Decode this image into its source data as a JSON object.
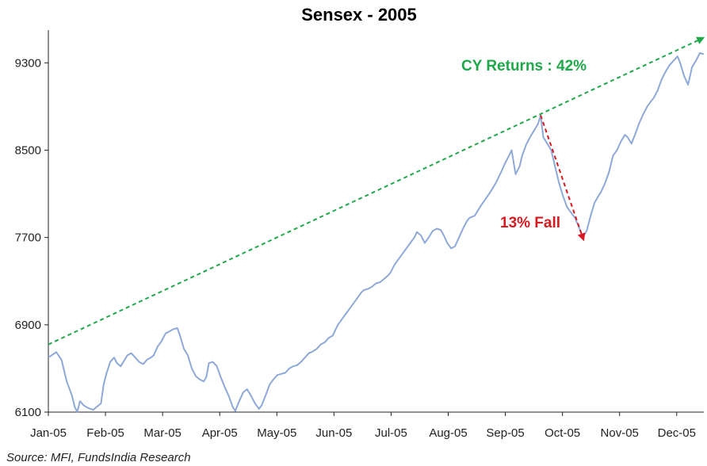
{
  "chart_data": {
    "type": "line",
    "title": "Sensex - 2005",
    "xlabel": "",
    "ylabel": "",
    "ylim": [
      6100,
      9600
    ],
    "y_ticks": [
      6100,
      6900,
      7700,
      8500,
      9300
    ],
    "x_tick_labels": [
      "Jan-05",
      "Feb-05",
      "Mar-05",
      "Apr-05",
      "May-05",
      "Jun-05",
      "Jul-05",
      "Aug-05",
      "Sep-05",
      "Oct-05",
      "Nov-05",
      "Dec-05"
    ],
    "grid": false,
    "series": [
      {
        "color": "#8ea9d8",
        "points": [
          [
            0.0,
            6600
          ],
          [
            0.3,
            6650
          ],
          [
            0.5,
            6580
          ],
          [
            0.7,
            6380
          ],
          [
            0.9,
            6250
          ],
          [
            1.0,
            6150
          ],
          [
            1.1,
            6100
          ],
          [
            1.2,
            6200
          ],
          [
            1.35,
            6160
          ],
          [
            1.5,
            6140
          ],
          [
            1.7,
            6120
          ],
          [
            1.85,
            6150
          ],
          [
            2.0,
            6180
          ],
          [
            2.1,
            6350
          ],
          [
            2.2,
            6450
          ],
          [
            2.35,
            6560
          ],
          [
            2.5,
            6600
          ],
          [
            2.6,
            6550
          ],
          [
            2.75,
            6520
          ],
          [
            2.9,
            6580
          ],
          [
            3.0,
            6620
          ],
          [
            3.15,
            6640
          ],
          [
            3.3,
            6600
          ],
          [
            3.45,
            6560
          ],
          [
            3.6,
            6540
          ],
          [
            3.75,
            6580
          ],
          [
            3.9,
            6600
          ],
          [
            4.0,
            6620
          ],
          [
            4.15,
            6700
          ],
          [
            4.3,
            6750
          ],
          [
            4.45,
            6820
          ],
          [
            4.6,
            6840
          ],
          [
            4.75,
            6860
          ],
          [
            4.9,
            6870
          ],
          [
            5.0,
            6800
          ],
          [
            5.15,
            6680
          ],
          [
            5.3,
            6620
          ],
          [
            5.45,
            6500
          ],
          [
            5.6,
            6430
          ],
          [
            5.75,
            6400
          ],
          [
            5.9,
            6380
          ],
          [
            6.0,
            6420
          ],
          [
            6.1,
            6550
          ],
          [
            6.25,
            6560
          ],
          [
            6.4,
            6520
          ],
          [
            6.55,
            6420
          ],
          [
            6.7,
            6330
          ],
          [
            6.85,
            6250
          ],
          [
            7.0,
            6150
          ],
          [
            7.1,
            6110
          ],
          [
            7.25,
            6200
          ],
          [
            7.4,
            6280
          ],
          [
            7.55,
            6310
          ],
          [
            7.7,
            6250
          ],
          [
            7.85,
            6180
          ],
          [
            8.0,
            6130
          ],
          [
            8.1,
            6160
          ],
          [
            8.25,
            6250
          ],
          [
            8.4,
            6350
          ],
          [
            8.55,
            6400
          ],
          [
            8.7,
            6440
          ],
          [
            8.85,
            6450
          ],
          [
            9.0,
            6460
          ],
          [
            9.15,
            6500
          ],
          [
            9.3,
            6520
          ],
          [
            9.45,
            6530
          ],
          [
            9.6,
            6560
          ],
          [
            9.75,
            6600
          ],
          [
            9.9,
            6640
          ],
          [
            10.0,
            6650
          ],
          [
            10.2,
            6680
          ],
          [
            10.35,
            6720
          ],
          [
            10.5,
            6740
          ],
          [
            10.65,
            6780
          ],
          [
            10.8,
            6800
          ],
          [
            10.9,
            6850
          ],
          [
            11.0,
            6900
          ],
          [
            11.15,
            6950
          ],
          [
            11.3,
            7000
          ],
          [
            11.45,
            7050
          ],
          [
            11.6,
            7100
          ],
          [
            11.75,
            7150
          ],
          [
            11.9,
            7200
          ],
          [
            12.0,
            7220
          ],
          [
            12.15,
            7230
          ],
          [
            12.3,
            7250
          ],
          [
            12.45,
            7280
          ],
          [
            12.6,
            7290
          ],
          [
            12.75,
            7320
          ],
          [
            12.9,
            7350
          ],
          [
            13.0,
            7380
          ],
          [
            13.15,
            7450
          ],
          [
            13.3,
            7500
          ],
          [
            13.45,
            7550
          ],
          [
            13.6,
            7600
          ],
          [
            13.75,
            7650
          ],
          [
            13.9,
            7700
          ],
          [
            14.0,
            7750
          ],
          [
            14.15,
            7720
          ],
          [
            14.3,
            7650
          ],
          [
            14.45,
            7700
          ],
          [
            14.6,
            7760
          ],
          [
            14.75,
            7780
          ],
          [
            14.9,
            7770
          ],
          [
            15.0,
            7730
          ],
          [
            15.15,
            7650
          ],
          [
            15.3,
            7600
          ],
          [
            15.45,
            7620
          ],
          [
            15.6,
            7700
          ],
          [
            15.75,
            7780
          ],
          [
            15.9,
            7850
          ],
          [
            16.0,
            7880
          ],
          [
            16.2,
            7900
          ],
          [
            16.4,
            7980
          ],
          [
            16.6,
            8050
          ],
          [
            16.8,
            8120
          ],
          [
            17.0,
            8200
          ],
          [
            17.2,
            8300
          ],
          [
            17.35,
            8380
          ],
          [
            17.5,
            8450
          ],
          [
            17.6,
            8500
          ],
          [
            17.75,
            8280
          ],
          [
            17.9,
            8350
          ],
          [
            18.0,
            8450
          ],
          [
            18.15,
            8550
          ],
          [
            18.3,
            8620
          ],
          [
            18.45,
            8680
          ],
          [
            18.6,
            8740
          ],
          [
            18.7,
            8820
          ],
          [
            18.8,
            8620
          ],
          [
            18.95,
            8560
          ],
          [
            19.1,
            8500
          ],
          [
            19.25,
            8350
          ],
          [
            19.4,
            8200
          ],
          [
            19.55,
            8080
          ],
          [
            19.7,
            7980
          ],
          [
            19.85,
            7930
          ],
          [
            20.0,
            7880
          ],
          [
            20.15,
            7800
          ],
          [
            20.3,
            7700
          ],
          [
            20.45,
            7760
          ],
          [
            20.6,
            7900
          ],
          [
            20.75,
            8020
          ],
          [
            20.9,
            8080
          ],
          [
            21.0,
            8120
          ],
          [
            21.15,
            8200
          ],
          [
            21.3,
            8300
          ],
          [
            21.45,
            8450
          ],
          [
            21.6,
            8500
          ],
          [
            21.75,
            8580
          ],
          [
            21.9,
            8640
          ],
          [
            22.0,
            8620
          ],
          [
            22.15,
            8560
          ],
          [
            22.3,
            8650
          ],
          [
            22.45,
            8750
          ],
          [
            22.6,
            8830
          ],
          [
            22.75,
            8900
          ],
          [
            22.9,
            8950
          ],
          [
            23.0,
            8980
          ],
          [
            23.15,
            9050
          ],
          [
            23.3,
            9150
          ],
          [
            23.45,
            9220
          ],
          [
            23.6,
            9280
          ],
          [
            23.75,
            9320
          ],
          [
            23.9,
            9360
          ],
          [
            24.0,
            9300
          ],
          [
            24.15,
            9180
          ],
          [
            24.3,
            9100
          ],
          [
            24.45,
            9260
          ],
          [
            24.6,
            9320
          ],
          [
            24.75,
            9390
          ],
          [
            24.9,
            9380
          ]
        ]
      }
    ],
    "trend_line": {
      "from": [
        0.0,
        6720
      ],
      "to": [
        24.8,
        9520
      ],
      "color": "#1fa84a",
      "label": "CY Returns : 42%"
    },
    "fall_arrow": {
      "from": [
        18.7,
        8820
      ],
      "to": [
        20.3,
        7700
      ],
      "color": "#d71920",
      "label": "13% Fall"
    }
  },
  "footer": {
    "source": "Source: MFI, FundsIndia Research"
  }
}
